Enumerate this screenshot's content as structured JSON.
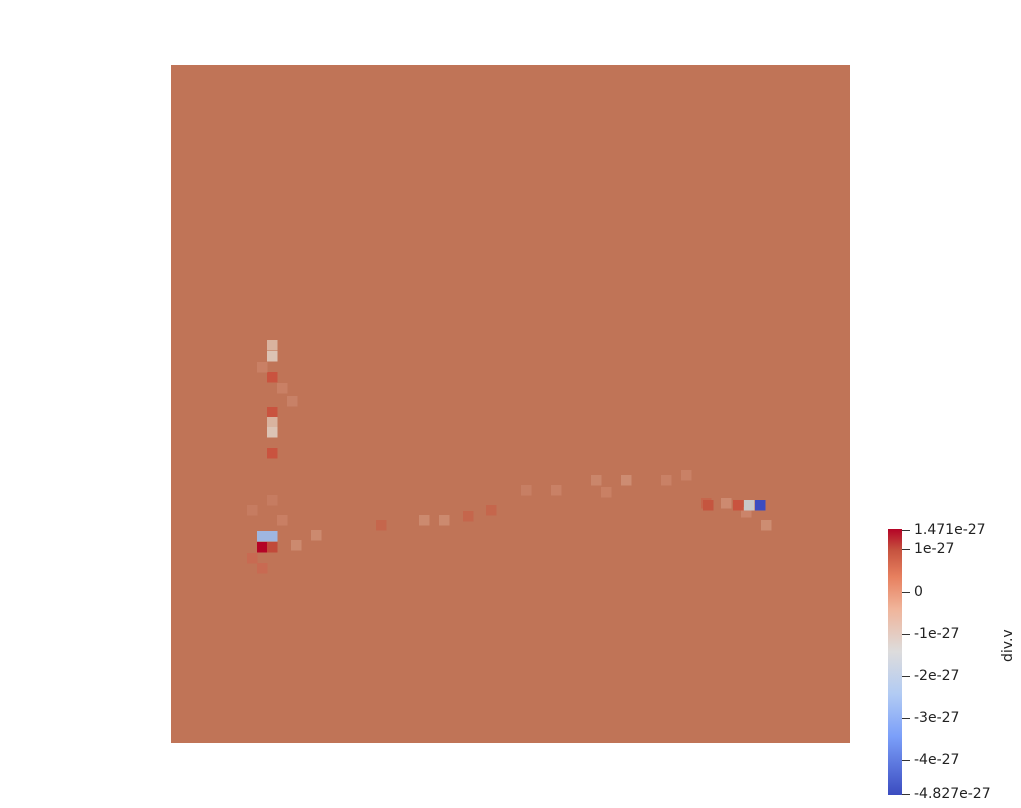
{
  "field": {
    "base_color": "#c07457",
    "highlight_colors": {
      "dark_red": "#b40426",
      "red": "#c9533f",
      "light": "#d9b39f",
      "pale": "#dcc3b4",
      "light_blue": "#9fb6e0",
      "blue": "#3b4cc0",
      "gray": "#c8c8c8"
    }
  },
  "colorbar": {
    "title": "div.v",
    "labels": [
      "1.471e-27",
      "1e-27",
      "0",
      "-1e-27",
      "-2e-27",
      "-3e-27",
      "-4e-27",
      "-4.827e-27"
    ]
  }
}
